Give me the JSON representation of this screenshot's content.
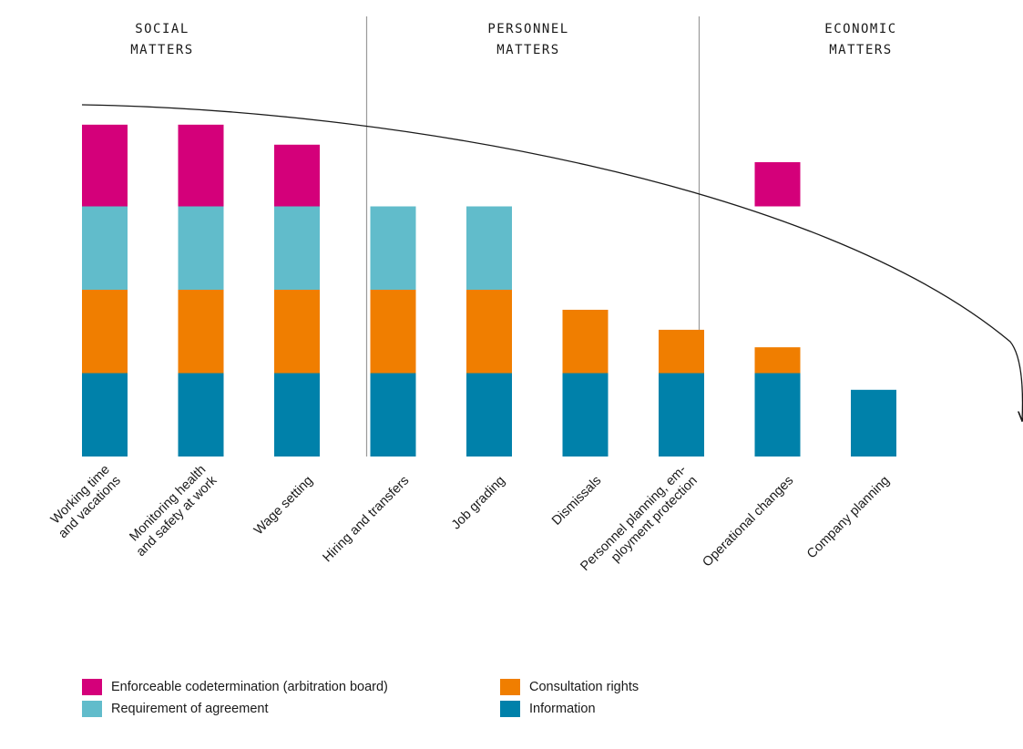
{
  "chart_data": {
    "type": "bar",
    "stacked": true,
    "groups": [
      {
        "title_lines": [
          "SOCIAL",
          "MATTERS"
        ],
        "categories": [
          0,
          1,
          2
        ]
      },
      {
        "title_lines": [
          "PERSONNEL",
          "MATTERS"
        ],
        "categories": [
          3,
          4,
          5
        ]
      },
      {
        "title_lines": [
          "ECONOMIC",
          "MATTERS"
        ],
        "categories": [
          6,
          7,
          8
        ]
      }
    ],
    "categories": [
      {
        "lines": [
          "Working time",
          "and vacations"
        ]
      },
      {
        "lines": [
          "Monitoring health",
          "and safety at work"
        ]
      },
      {
        "lines": [
          "Wage setting"
        ]
      },
      {
        "lines": [
          "Hiring and transfers"
        ]
      },
      {
        "lines": [
          "Job grading"
        ]
      },
      {
        "lines": [
          "Dismissals"
        ]
      },
      {
        "lines": [
          "Personnel planning, em-",
          "ployment protection"
        ]
      },
      {
        "lines": [
          "Operational changes"
        ]
      },
      {
        "lines": [
          "Company planning"
        ]
      }
    ],
    "series": [
      {
        "name": "Information",
        "color": "#0081aa",
        "segments": [
          [
            0,
            1
          ],
          [
            0,
            1
          ],
          [
            0,
            1
          ],
          [
            0,
            1
          ],
          [
            0,
            1
          ],
          [
            0,
            1
          ],
          [
            0,
            1
          ],
          [
            0,
            1
          ],
          [
            0,
            0.8
          ]
        ]
      },
      {
        "name": "Consultation rights",
        "color": "#f07e00",
        "segments": [
          [
            1,
            2
          ],
          [
            1,
            2
          ],
          [
            1,
            2
          ],
          [
            1,
            2
          ],
          [
            1,
            2
          ],
          [
            1,
            1.76
          ],
          [
            1,
            1.52
          ],
          [
            1,
            1.31
          ],
          null
        ]
      },
      {
        "name": "Requirement of agreement",
        "color": "#61bccb",
        "segments": [
          [
            2,
            3
          ],
          [
            2,
            3
          ],
          [
            2,
            3
          ],
          [
            2,
            3
          ],
          [
            2,
            3
          ],
          null,
          null,
          null,
          null
        ]
      },
      {
        "name": "Enforceable codetermination (arbitration board)",
        "color": "#d4007a",
        "segments": [
          [
            3,
            3.98
          ],
          [
            3,
            3.98
          ],
          [
            3,
            3.74
          ],
          null,
          null,
          null,
          null,
          [
            3,
            3.53
          ],
          null
        ]
      }
    ],
    "ylim": [
      0,
      4
    ],
    "trend_arrow": true,
    "legend": [
      {
        "label": "Enforceable codetermination (arbitration board)",
        "color": "#d4007a"
      },
      {
        "label": "Requirement of agreement",
        "color": "#61bccb"
      },
      {
        "label": "Consultation rights",
        "color": "#f07e00"
      },
      {
        "label": "Information",
        "color": "#0081aa"
      }
    ]
  }
}
